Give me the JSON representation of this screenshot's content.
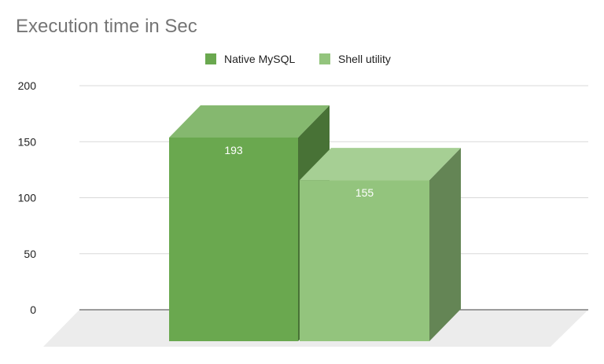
{
  "chart_data": {
    "type": "bar",
    "style": "3d",
    "title": "Execution time in Sec",
    "xlabel": "",
    "ylabel": "",
    "ylim": [
      0,
      200
    ],
    "yticks": [
      0,
      50,
      100,
      150,
      200
    ],
    "ytick_labels": [
      "0",
      "50",
      "100",
      "150",
      "200"
    ],
    "gridlines": true,
    "legend_position": "top",
    "series": [
      {
        "name": "Native MySQL",
        "values": [
          193
        ],
        "data_label": "193",
        "color": "#6aa84f"
      },
      {
        "name": "Shell utility",
        "values": [
          155
        ],
        "data_label": "155",
        "color": "#93c47d"
      }
    ]
  }
}
